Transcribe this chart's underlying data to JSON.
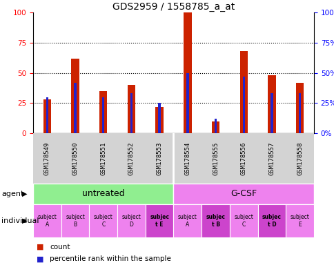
{
  "title": "GDS2959 / 1558785_a_at",
  "samples": [
    "GSM178549",
    "GSM178550",
    "GSM178551",
    "GSM178552",
    "GSM178553",
    "GSM178554",
    "GSM178555",
    "GSM178556",
    "GSM178557",
    "GSM178558"
  ],
  "red_values": [
    28,
    62,
    35,
    40,
    22,
    100,
    10,
    68,
    48,
    42
  ],
  "blue_values": [
    30,
    42,
    30,
    33,
    25,
    50,
    12,
    47,
    33,
    33
  ],
  "ylim": [
    0,
    100
  ],
  "yticks": [
    0,
    25,
    50,
    75,
    100
  ],
  "bar_color": "#cc2200",
  "blue_color": "#2222cc",
  "gray_bg": "#d3d3d3",
  "agent_untreated_color": "#90ee90",
  "agent_gcsf_color": "#ee82ee",
  "indiv_normal_color": "#ee82ee",
  "indiv_bold_color": "#cc44cc",
  "individual_labels": [
    "subject\nA",
    "subject\nB",
    "subject\nC",
    "subject\nD",
    "subjec\nt E",
    "subject\nA",
    "subjec\nt B",
    "subject\nC",
    "subjec\nt D",
    "subject\nE"
  ],
  "individual_bold": [
    false,
    false,
    false,
    false,
    true,
    false,
    true,
    false,
    true,
    false
  ]
}
